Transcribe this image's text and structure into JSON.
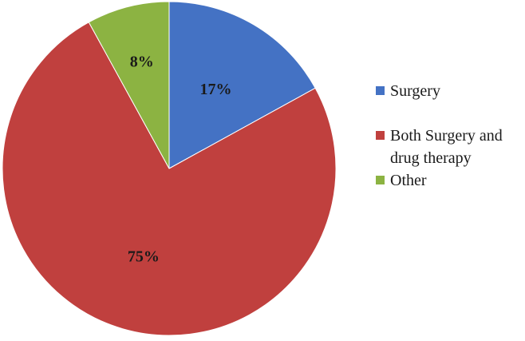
{
  "chart_data": {
    "type": "pie",
    "title": "",
    "start_angle_deg": 0,
    "direction": "clockwise",
    "slices": [
      {
        "label": "Surgery",
        "value": 17,
        "display": "17%",
        "color": "#4472C4"
      },
      {
        "label": "Both Surgery and drug therapy",
        "value": 75,
        "display": "75%",
        "color": "#C0403E"
      },
      {
        "label": "Other",
        "value": 8,
        "display": "8%",
        "color": "#8CB342"
      }
    ],
    "legend": {
      "placement": "right",
      "entries": [
        {
          "lines": [
            "Surgery"
          ],
          "color": "#4472C4"
        },
        {
          "lines": [
            "Both Surgery and",
            "drug therapy"
          ],
          "color": "#C0403E"
        },
        {
          "lines": [
            "Other"
          ],
          "color": "#8CB342"
        }
      ]
    }
  }
}
